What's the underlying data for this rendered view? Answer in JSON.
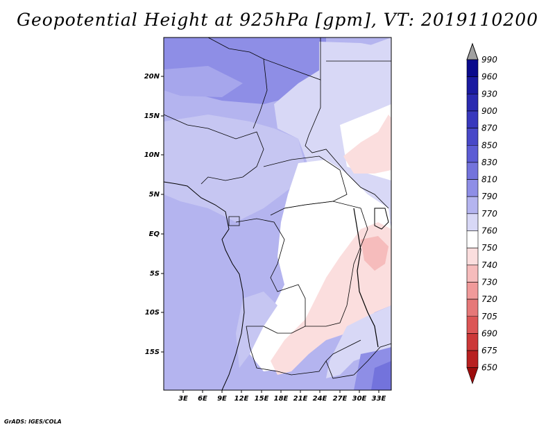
{
  "title": "Geopotential Height at 925hPa [gpm], VT: 2019110200",
  "credit": "GrADS: IGES/COLA",
  "map": {
    "lat_labels": [
      "20N",
      "15N",
      "10N",
      "5N",
      "EQ",
      "5S",
      "10S",
      "15S"
    ],
    "lon_labels": [
      "3E",
      "6E",
      "9E",
      "12E",
      "15E",
      "18E",
      "21E",
      "24E",
      "27E",
      "30E",
      "33E"
    ]
  },
  "colorbar": {
    "levels": [
      "990",
      "960",
      "930",
      "900",
      "870",
      "850",
      "830",
      "810",
      "790",
      "770",
      "760",
      "750",
      "740",
      "730",
      "720",
      "705",
      "690",
      "675",
      "650"
    ],
    "colors": {
      "over": "#a0a0a0",
      "990": "#0a0a8c",
      "960": "#1a1aa0",
      "930": "#2a2ab0",
      "900": "#3838bd",
      "870": "#4848c8",
      "850": "#5c5cd4",
      "830": "#7373dc",
      "810": "#8e8ee6",
      "790": "#b4b4ef",
      "770": "#d8d8f6",
      "760": "#ffffff",
      "750": "#fbdede",
      "740": "#f6bcbc",
      "730": "#f09a9a",
      "720": "#e67878",
      "705": "#dc5656",
      "690": "#cc3838",
      "675": "#b82020",
      "650": "#9c0c0c"
    }
  },
  "chart_data": {
    "type": "heatmap",
    "title": "Geopotential Height at 925hPa [gpm], VT: 2019110200",
    "x_ticks": [
      "3E",
      "6E",
      "9E",
      "12E",
      "15E",
      "18E",
      "21E",
      "24E",
      "27E",
      "30E",
      "33E"
    ],
    "y_ticks": [
      "20N",
      "15N",
      "10N",
      "5N",
      "EQ",
      "5S",
      "10S",
      "15S"
    ],
    "x_range_deg_e": [
      0.3,
      34.5
    ],
    "y_range_deg_n": [
      -20,
      24.7
    ],
    "levels": [
      650,
      675,
      690,
      705,
      720,
      730,
      740,
      750,
      760,
      770,
      790,
      810,
      830,
      850,
      870,
      900,
      930,
      960,
      990
    ]
  }
}
